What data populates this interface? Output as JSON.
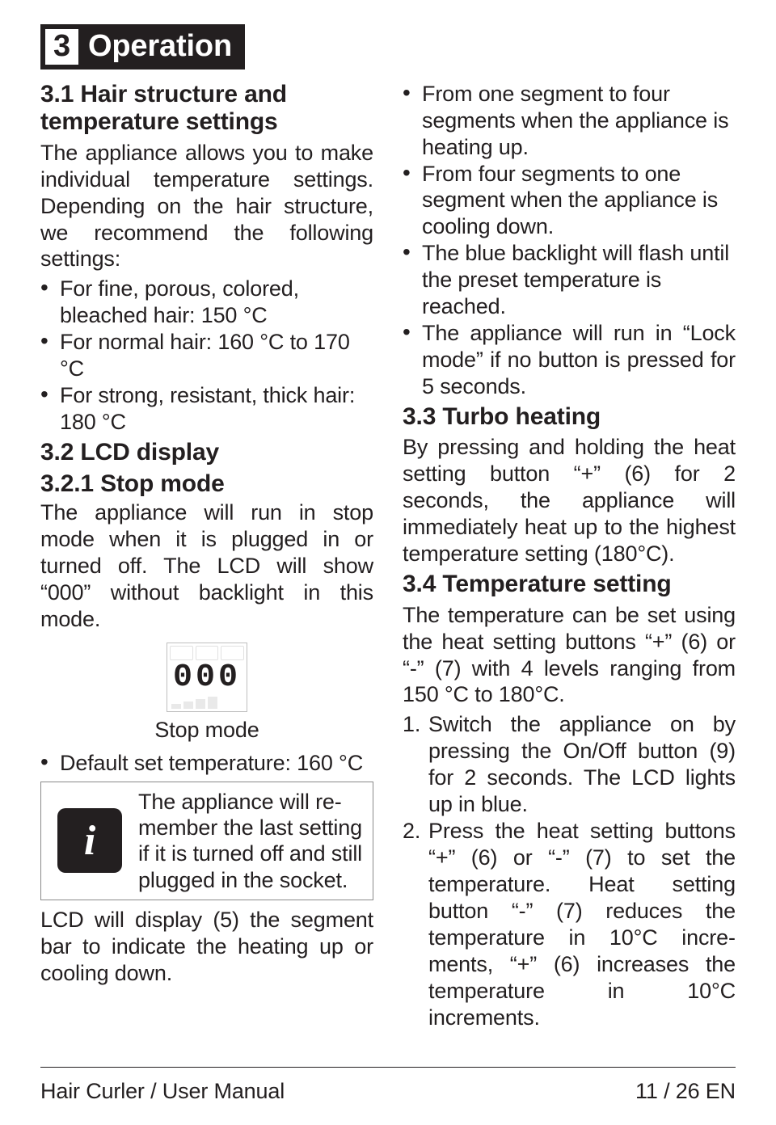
{
  "chapter": {
    "number": "3",
    "title": "Operation"
  },
  "left": {
    "s31_heading": "3.1 Hair structure and temperature settings",
    "s31_intro": "The appliance allows you to make indi­vidual temperature settings. Depending on the hair structure, we recommend the following settings:",
    "s31_items": {
      "a": "For fine, porous, colored, bleached hair: 150 °C",
      "b": "For normal hair: 160 °C to 170 °C",
      "c": "For strong, resistant, thick hair: 180 °C"
    },
    "s32_heading": "3.2 LCD display",
    "s321_heading": "3.2.1 Stop mode",
    "s321_p1": "The appliance will run in stop mode when it is plugged in or turned off. The LCD will show “000” without backlight in this mode.",
    "lcd": {
      "digits": "000",
      "caption": "Stop mode"
    },
    "default_item": "Default set temperature: 160 °C",
    "info_text": "The appliance will re­member the last setting if it is turned off and still plugged in the socket.",
    "after_info": "LCD will display (5) the segment bar to indicate the heating up or cooling down."
  },
  "right": {
    "cont_items": {
      "a": "From one segment to four segments when the appliance is heating up.",
      "b": "From four segments to one segment when the appliance is cooling down.",
      "c": "The blue backlight will flash until the preset temperature is reached.",
      "d": "The appliance will run in “Lock mode” if no button is pressed for 5 seconds."
    },
    "s33_heading": "3.3 Turbo heating",
    "s33_p": "By pressing and holding the heat set­ting button “+” (6) for 2 seconds, the appliance will immediately heat up to the highest temperature setting (180°C).",
    "s34_heading": "3.4 Temperature setting",
    "s34_p": "The temperature can be set using the heat setting buttons “+” (6) or “-” (7) with 4 levels ranging from 150 °C to 180°C.",
    "s34_steps": {
      "n1": "1.",
      "t1": "Switch the appliance on by pressing the On/Off button (9) for 2 seconds. The LCD lights up in blue.",
      "n2": "2.",
      "t2": "Press the heat setting buttons “+” (6) or “-” (7) to set the temperature. Heat setting button “-” (7) reduces the temperature in 10°C incre­ments, “+” (6) increases the tem­perature in 10°C increments."
    }
  },
  "footer": {
    "left": "Hair Curler / User Manual",
    "right": "11 / 26  EN"
  }
}
